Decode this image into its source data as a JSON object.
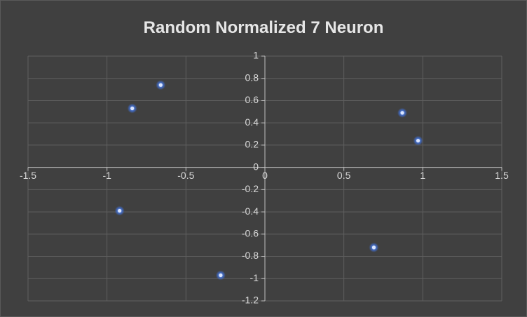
{
  "chart_data": {
    "type": "scatter",
    "title": "Random Normalized 7 Neuron",
    "xlim": [
      -1.5,
      1.5
    ],
    "ylim": [
      -1.2,
      1
    ],
    "x_ticks": [
      -1.5,
      -1,
      -0.5,
      0,
      0.5,
      1,
      1.5
    ],
    "y_ticks": [
      -1.2,
      -1,
      -0.8,
      -0.6,
      -0.4,
      -0.2,
      0,
      0.2,
      0.4,
      0.6,
      0.8,
      1
    ],
    "grid": true,
    "legend": "none",
    "series": [
      {
        "points": [
          {
            "x": -0.66,
            "y": 0.74
          },
          {
            "x": -0.84,
            "y": 0.53
          },
          {
            "x": -0.92,
            "y": -0.39
          },
          {
            "x": -0.28,
            "y": -0.97
          },
          {
            "x": 0.69,
            "y": -0.72
          },
          {
            "x": 0.87,
            "y": 0.49
          },
          {
            "x": 0.97,
            "y": 0.24
          }
        ]
      }
    ],
    "colors": {
      "background": "#404040",
      "grid": "#5f5f5f",
      "axis": "#bfbfbf",
      "text": "#d9d9d9",
      "title": "#e6e6e6",
      "marker_core": "#dbe6ff",
      "marker_glow": "#3f6fd6"
    }
  }
}
